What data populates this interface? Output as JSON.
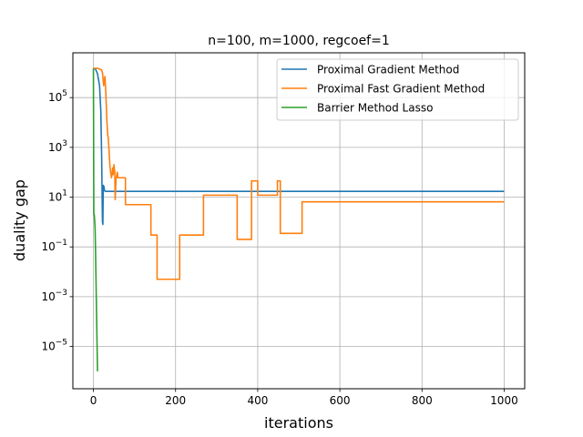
{
  "chart_data": {
    "type": "line",
    "title": "n=100, m=1000, regcoef=1",
    "xlabel": "iterations",
    "ylabel": "duality gap",
    "xlim": [
      -50,
      1050
    ],
    "ylim_log10": [
      -6.7,
      6.8
    ],
    "y_scale": "log",
    "grid": true,
    "legend_position": "top-right",
    "x_ticks": [
      0,
      200,
      400,
      600,
      800,
      1000
    ],
    "y_ticks_log10": [
      -5,
      -3,
      -1,
      1,
      3,
      5
    ],
    "y_tick_labels": [
      {
        "base": "10",
        "exp": "−5"
      },
      {
        "base": "10",
        "exp": "−3"
      },
      {
        "base": "10",
        "exp": "−1"
      },
      {
        "base": "10",
        "exp": "1"
      },
      {
        "base": "10",
        "exp": "3"
      },
      {
        "base": "10",
        "exp": "5"
      }
    ],
    "series": [
      {
        "name": "Proximal Gradient Method",
        "color": "#1f77b4",
        "points": [
          [
            0,
            1500000
          ],
          [
            5,
            1400000
          ],
          [
            10,
            900000
          ],
          [
            15,
            300000
          ],
          [
            18,
            30000
          ],
          [
            20,
            500
          ],
          [
            22,
            1.0
          ],
          [
            23,
            0.8
          ],
          [
            24,
            30
          ],
          [
            25,
            28
          ],
          [
            26,
            25
          ],
          [
            27,
            18
          ],
          [
            30,
            17
          ],
          [
            100,
            17
          ],
          [
            500,
            17
          ],
          [
            1000,
            17
          ]
        ]
      },
      {
        "name": "Proximal Fast Gradient Method",
        "color": "#ff7f0e",
        "points": [
          [
            0,
            1500000
          ],
          [
            10,
            1500000
          ],
          [
            20,
            1300000
          ],
          [
            22,
            1000000
          ],
          [
            25,
            300000
          ],
          [
            28,
            700000
          ],
          [
            30,
            200000
          ],
          [
            33,
            10000
          ],
          [
            35,
            3000
          ],
          [
            36,
            2500
          ],
          [
            38,
            800
          ],
          [
            40,
            200
          ],
          [
            42,
            100
          ],
          [
            44,
            60
          ],
          [
            45,
            80
          ],
          [
            47,
            150
          ],
          [
            48,
            80
          ],
          [
            50,
            200
          ],
          [
            52,
            100
          ],
          [
            53,
            8
          ],
          [
            55,
            50
          ],
          [
            58,
            100
          ],
          [
            60,
            60
          ],
          [
            78,
            60
          ],
          [
            78,
            5
          ],
          [
            140,
            5
          ],
          [
            140,
            0.3
          ],
          [
            155,
            0.3
          ],
          [
            155,
            0.005
          ],
          [
            210,
            0.005
          ],
          [
            210,
            0.3
          ],
          [
            268,
            0.3
          ],
          [
            268,
            12
          ],
          [
            350,
            12
          ],
          [
            350,
            0.2
          ],
          [
            385,
            0.2
          ],
          [
            385,
            45
          ],
          [
            400,
            45
          ],
          [
            400,
            12
          ],
          [
            448,
            12
          ],
          [
            448,
            45
          ],
          [
            455,
            45
          ],
          [
            455,
            0.35
          ],
          [
            508,
            0.35
          ],
          [
            508,
            6.5
          ],
          [
            1000,
            6.5
          ]
        ]
      },
      {
        "name": "Barrier Method Lasso",
        "color": "#2ca02c",
        "points": [
          [
            0,
            1500000
          ],
          [
            1,
            2.0
          ],
          [
            2,
            2.0
          ],
          [
            3,
            1.2
          ],
          [
            4,
            0.6
          ],
          [
            5,
            0.1
          ],
          [
            6,
            0.01
          ],
          [
            7,
            0.001
          ],
          [
            8,
            0.0001
          ],
          [
            9,
            1e-05
          ],
          [
            10,
            1e-06
          ]
        ]
      }
    ]
  }
}
